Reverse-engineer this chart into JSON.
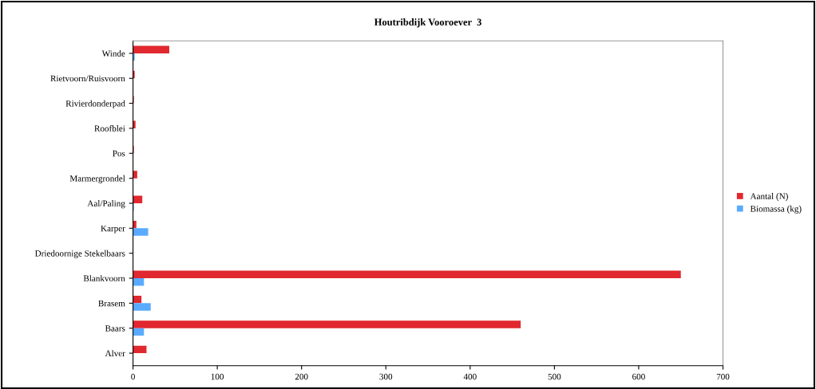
{
  "chart_data": {
    "type": "bar",
    "orientation": "horizontal",
    "title": "Houtribdijk Vooroever  3",
    "categories": [
      "Winde",
      "Rietvoorn/Ruisvoorn",
      "Rivierdonderpad",
      "Roofblei",
      "Pos",
      "Marmergrondel",
      "Aal/Paling",
      "Karper",
      "Driedoornige Stekelbaars",
      "Blankvoorn",
      "Brasem",
      "Baars",
      "Alver"
    ],
    "series": [
      {
        "name": "Aantal (N)",
        "color": "#e0282e",
        "values": [
          43,
          2,
          1,
          3,
          1,
          5,
          11,
          4,
          0,
          650,
          10,
          460,
          16
        ]
      },
      {
        "name": "Biomassa (kg)",
        "color": "#5aabff",
        "values": [
          2,
          0,
          0,
          0,
          0,
          0,
          1,
          18,
          0,
          13,
          21,
          13,
          0
        ]
      }
    ],
    "xlim": [
      0,
      700
    ],
    "xticks": [
      0,
      100,
      200,
      300,
      400,
      500,
      600,
      700
    ],
    "grid": false,
    "legend": "right"
  }
}
